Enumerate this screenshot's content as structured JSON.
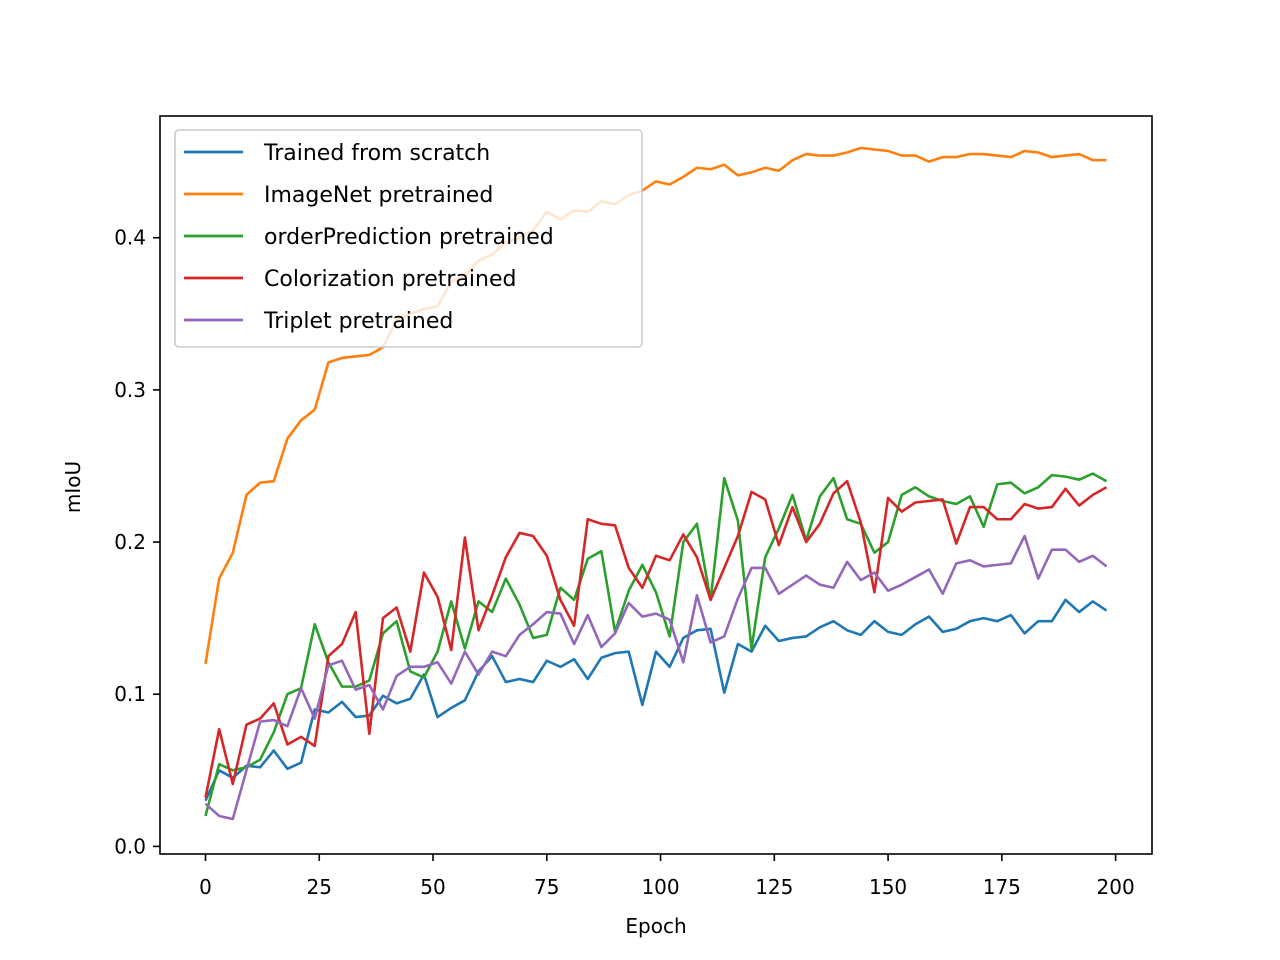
{
  "chart_data": {
    "type": "line",
    "title": "",
    "xlabel": "Epoch",
    "ylabel": "mIoU",
    "xlim": [
      -10,
      208
    ],
    "ylim": [
      -0.005,
      0.48
    ],
    "xticks": [
      0,
      25,
      50,
      75,
      100,
      125,
      150,
      175,
      200
    ],
    "xtick_labels": [
      "0",
      "25",
      "50",
      "75",
      "100",
      "125",
      "150",
      "175",
      "200"
    ],
    "yticks": [
      0.0,
      0.1,
      0.2,
      0.3,
      0.4
    ],
    "ytick_labels": [
      "0.0",
      "0.1",
      "0.2",
      "0.3",
      "0.4"
    ],
    "grid": false,
    "legend_position": "upper-left",
    "x": [
      0,
      3,
      6,
      9,
      12,
      15,
      18,
      21,
      24,
      27,
      30,
      33,
      36,
      39,
      42,
      45,
      48,
      51,
      54,
      57,
      60,
      63,
      66,
      69,
      72,
      75,
      78,
      81,
      84,
      87,
      90,
      93,
      96,
      99,
      102,
      105,
      108,
      111,
      114,
      117,
      120,
      123,
      126,
      129,
      132,
      135,
      138,
      141,
      144,
      147,
      150,
      153,
      156,
      159,
      162,
      165,
      168,
      171,
      174,
      177,
      180,
      183,
      186,
      189,
      192,
      195,
      198
    ],
    "series": [
      {
        "name": "Trained from scratch",
        "color": "#1f77b4",
        "values": [
          0.03,
          0.05,
          0.045,
          0.053,
          0.052,
          0.063,
          0.051,
          0.055,
          0.09,
          0.088,
          0.095,
          0.085,
          0.086,
          0.099,
          0.094,
          0.097,
          0.113,
          0.085,
          0.091,
          0.096,
          0.115,
          0.125,
          0.108,
          0.11,
          0.108,
          0.122,
          0.118,
          0.123,
          0.11,
          0.124,
          0.127,
          0.128,
          0.093,
          0.128,
          0.118,
          0.137,
          0.142,
          0.143,
          0.101,
          0.133,
          0.128,
          0.145,
          0.135,
          0.137,
          0.138,
          0.144,
          0.148,
          0.142,
          0.139,
          0.148,
          0.141,
          0.139,
          0.146,
          0.151,
          0.141,
          0.143,
          0.148,
          0.15,
          0.148,
          0.152,
          0.14,
          0.148,
          0.148,
          0.162,
          0.154,
          0.161,
          0.155
        ]
      },
      {
        "name": "ImageNet pretrained",
        "color": "#ff7f0e",
        "values": [
          0.12,
          0.176,
          0.193,
          0.231,
          0.239,
          0.24,
          0.268,
          0.28,
          0.287,
          0.318,
          0.321,
          0.322,
          0.323,
          0.328,
          0.346,
          0.35,
          0.353,
          0.355,
          0.371,
          0.375,
          0.385,
          0.389,
          0.397,
          0.4,
          0.405,
          0.417,
          0.412,
          0.418,
          0.417,
          0.424,
          0.422,
          0.428,
          0.431,
          0.437,
          0.435,
          0.44,
          0.446,
          0.445,
          0.448,
          0.441,
          0.443,
          0.446,
          0.444,
          0.451,
          0.455,
          0.454,
          0.454,
          0.456,
          0.459,
          0.458,
          0.457,
          0.454,
          0.454,
          0.45,
          0.453,
          0.453,
          0.455,
          0.455,
          0.454,
          0.453,
          0.457,
          0.456,
          0.453,
          0.454,
          0.455,
          0.451,
          0.451
        ]
      },
      {
        "name": "orderPrediction pretrained",
        "color": "#2ca02c",
        "values": [
          0.02,
          0.054,
          0.05,
          0.052,
          0.057,
          0.075,
          0.1,
          0.104,
          0.146,
          0.121,
          0.105,
          0.105,
          0.109,
          0.14,
          0.148,
          0.115,
          0.111,
          0.128,
          0.161,
          0.13,
          0.161,
          0.154,
          0.176,
          0.159,
          0.137,
          0.139,
          0.17,
          0.162,
          0.189,
          0.194,
          0.141,
          0.168,
          0.185,
          0.167,
          0.138,
          0.2,
          0.212,
          0.162,
          0.242,
          0.214,
          0.13,
          0.19,
          0.209,
          0.231,
          0.201,
          0.23,
          0.242,
          0.215,
          0.212,
          0.193,
          0.2,
          0.231,
          0.236,
          0.23,
          0.227,
          0.225,
          0.23,
          0.21,
          0.238,
          0.239,
          0.232,
          0.236,
          0.244,
          0.243,
          0.241,
          0.245,
          0.24
        ]
      },
      {
        "name": "Colorization pretrained",
        "color": "#d62728",
        "values": [
          0.032,
          0.077,
          0.041,
          0.08,
          0.084,
          0.094,
          0.067,
          0.072,
          0.066,
          0.125,
          0.133,
          0.154,
          0.074,
          0.15,
          0.157,
          0.128,
          0.18,
          0.164,
          0.129,
          0.203,
          0.142,
          0.165,
          0.19,
          0.206,
          0.204,
          0.191,
          0.162,
          0.145,
          0.215,
          0.212,
          0.211,
          0.183,
          0.17,
          0.191,
          0.188,
          0.205,
          0.19,
          0.162,
          0.183,
          0.204,
          0.233,
          0.228,
          0.198,
          0.223,
          0.2,
          0.212,
          0.232,
          0.24,
          0.213,
          0.167,
          0.229,
          0.22,
          0.226,
          0.227,
          0.228,
          0.199,
          0.223,
          0.223,
          0.215,
          0.215,
          0.225,
          0.222,
          0.223,
          0.235,
          0.224,
          0.231,
          0.236
        ]
      },
      {
        "name": "Triplet pretrained",
        "color": "#9467bd",
        "values": [
          0.028,
          0.02,
          0.018,
          0.05,
          0.082,
          0.083,
          0.079,
          0.104,
          0.084,
          0.119,
          0.122,
          0.103,
          0.106,
          0.09,
          0.112,
          0.118,
          0.118,
          0.121,
          0.107,
          0.128,
          0.113,
          0.128,
          0.125,
          0.139,
          0.146,
          0.154,
          0.153,
          0.133,
          0.152,
          0.131,
          0.14,
          0.16,
          0.151,
          0.153,
          0.149,
          0.121,
          0.165,
          0.134,
          0.138,
          0.163,
          0.183,
          0.183,
          0.166,
          0.172,
          0.178,
          0.172,
          0.17,
          0.187,
          0.175,
          0.18,
          0.168,
          0.172,
          0.177,
          0.182,
          0.166,
          0.186,
          0.188,
          0.184,
          0.185,
          0.186,
          0.204,
          0.176,
          0.195,
          0.195,
          0.187,
          0.191,
          0.184
        ]
      }
    ]
  }
}
